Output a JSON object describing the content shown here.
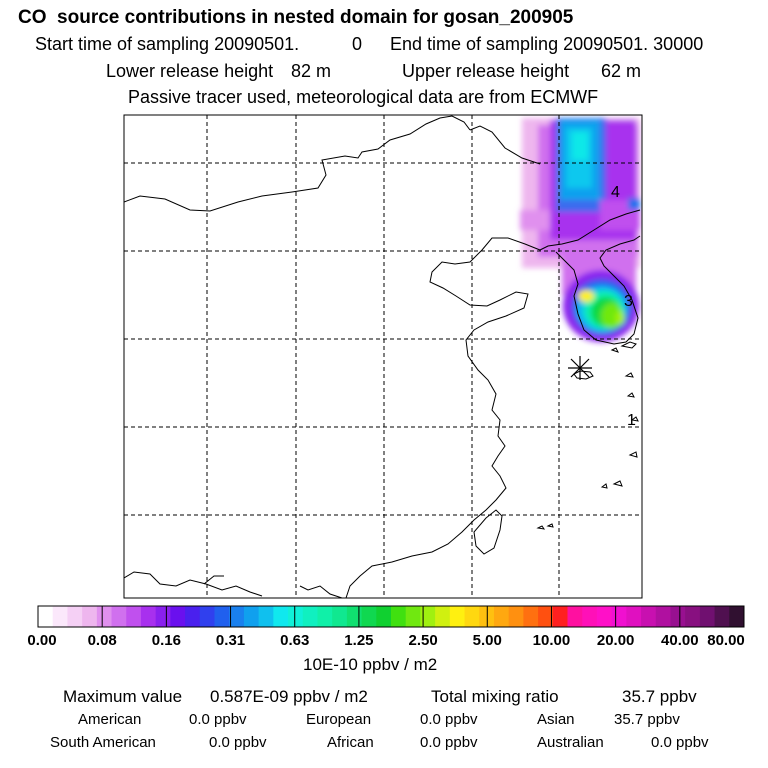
{
  "header": {
    "title": "CO  source contributions in nested domain for gosan_200905",
    "start_label": "Start time of sampling 20090501.",
    "start_hour": "0",
    "end_label": "End time of sampling 20090501. 30000",
    "lower_label": "Lower release height",
    "lower_value": "82 m",
    "upper_label": "Upper release height",
    "upper_value": "62 m",
    "tracer_note": "Passive tracer used, meteorological data are from ECMWF"
  },
  "map": {
    "markers": [
      "4",
      "3",
      "1"
    ],
    "site_marker": "receptor-asterisk"
  },
  "colorbar": {
    "labels": [
      "0.00",
      "0.08",
      "0.16",
      "0.31",
      "0.63",
      "1.25",
      "2.50",
      "5.00",
      "10.00",
      "20.00",
      "40.00",
      "80.00"
    ],
    "colors": [
      "#ffffff",
      "#fbe8fb",
      "#f5d0f5",
      "#eeb6ee",
      "#e090ee",
      "#d070ee",
      "#c050ee",
      "#a830ee",
      "#8a20ee",
      "#6a10ee",
      "#4a20ee",
      "#3040ee",
      "#2060ee",
      "#1a80ee",
      "#10a0ee",
      "#10c0ee",
      "#10e8ee",
      "#10f0d8",
      "#10f0c0",
      "#10f0a8",
      "#10e890",
      "#10e070",
      "#10d850",
      "#10d030",
      "#40e010",
      "#70e810",
      "#a0f010",
      "#d0f010",
      "#fff010",
      "#ffd810",
      "#ffc010",
      "#ffa810",
      "#ff9010",
      "#ff7010",
      "#ff5010",
      "#ff2020",
      "#ff10a0",
      "#ff10b8",
      "#ff10c8",
      "#f010d0",
      "#e010c0",
      "#c810b0",
      "#b010a0",
      "#981090",
      "#881080",
      "#701070",
      "#501050",
      "#301030"
    ],
    "unit": "10E-10 ppbv / m2"
  },
  "stats": {
    "max_label": "Maximum value",
    "max_value": "0.587E-09 ppbv / m2",
    "total_label": "Total mixing ratio",
    "total_value": "35.7 ppbv",
    "american_label": "American",
    "american_value": "0.0 ppbv",
    "european_label": "European",
    "european_value": "0.0 ppbv",
    "asian_label": "Asian",
    "asian_value": "35.7 ppbv",
    "south_american_label": "South American",
    "south_american_value": "0.0 ppbv",
    "african_label": "African",
    "african_value": "0.0 ppbv",
    "australian_label": "Australian",
    "australian_value": "0.0 ppbv"
  }
}
